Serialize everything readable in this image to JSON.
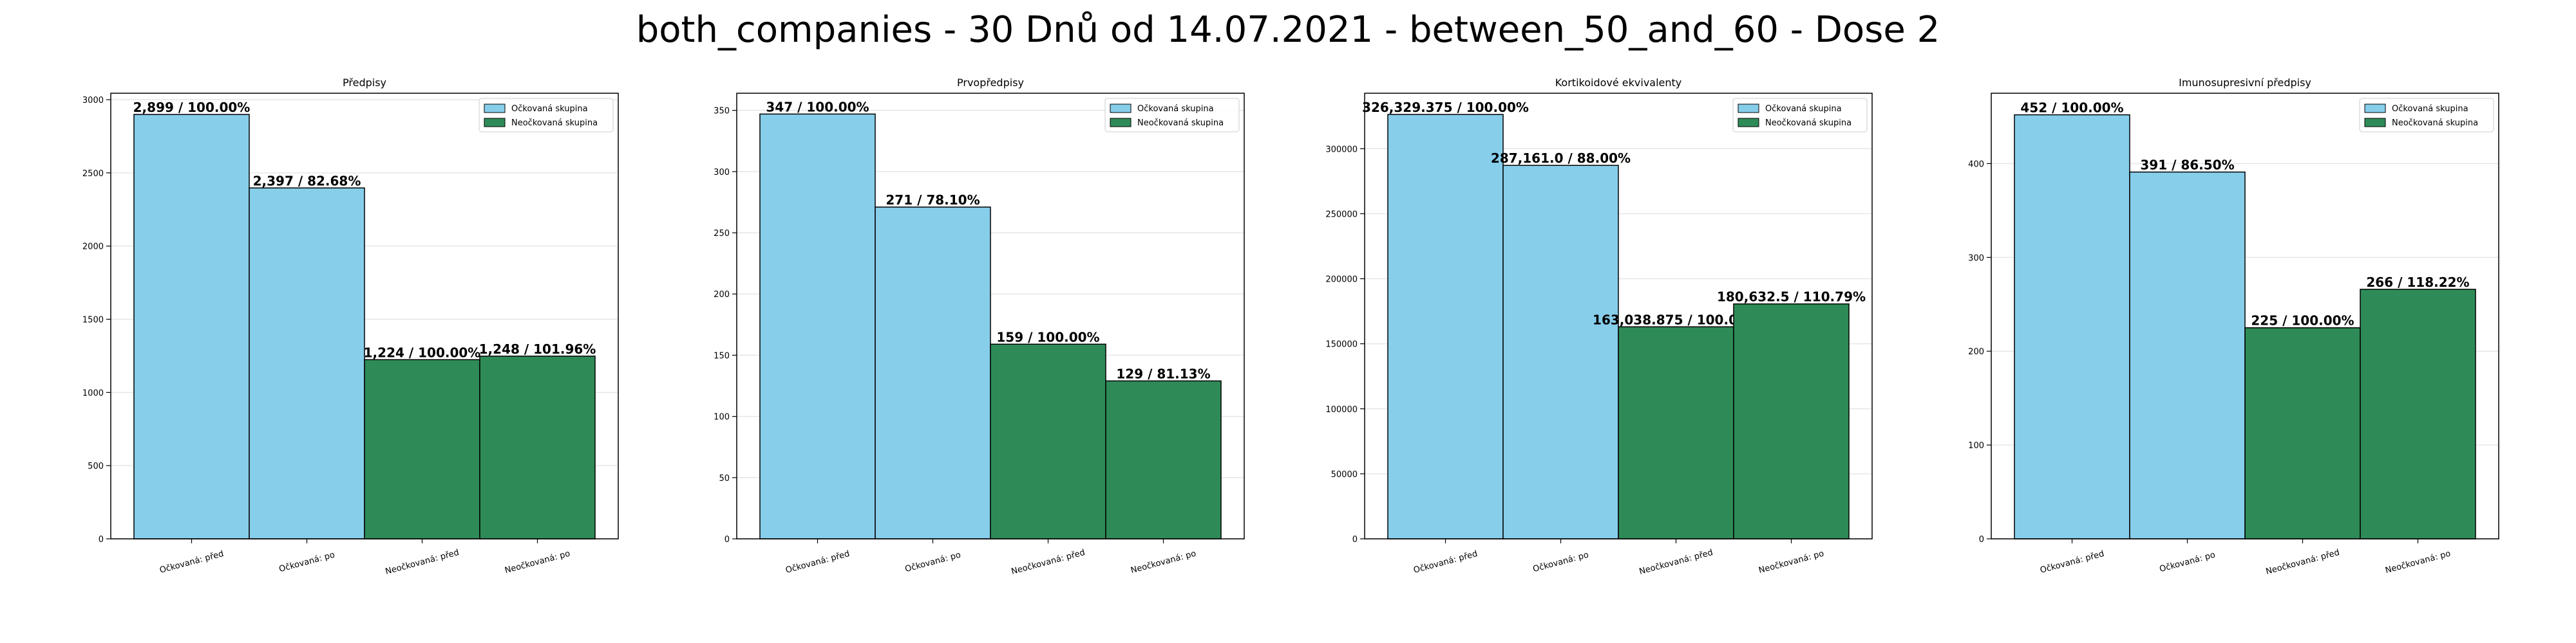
{
  "figure": {
    "title": "both_companies - 30 Dnů od 14.07.2021 - between_50_and_60 - Dose 2"
  },
  "colors": {
    "vaccinated": "#87ceeb",
    "unvaccinated": "#2e8b57",
    "edge": "#000000",
    "grid": "#e6e6e6"
  },
  "chart_data": [
    {
      "type": "bar",
      "title": "Předpisy",
      "categories": [
        "Očkovaná: před",
        "Očkovaná: po",
        "Neočkovaná: před",
        "Neočkovaná: po"
      ],
      "values": [
        2899,
        2397,
        1224,
        1248
      ],
      "groups": [
        "vaccinated",
        "vaccinated",
        "unvaccinated",
        "unvaccinated"
      ],
      "data_labels": [
        "2,899 / 100.00%",
        "2,397 / 82.68%",
        "1,224 / 100.00%",
        "1,248 / 101.96%"
      ],
      "ylim": [
        0,
        3044
      ],
      "yticks": [
        0,
        500,
        1000,
        1500,
        2000,
        2500,
        3000
      ],
      "ytick_labels": [
        "0",
        "500",
        "1000",
        "1500",
        "2000",
        "2500",
        "3000"
      ],
      "legend": [
        "Očkovaná skupina",
        "Neočkovaná skupina"
      ],
      "legend_position": "top-right",
      "grid": true
    },
    {
      "type": "bar",
      "title": "Prvopředpisy",
      "categories": [
        "Očkovaná: před",
        "Očkovaná: po",
        "Neočkovaná: před",
        "Neočkovaná: po"
      ],
      "values": [
        347,
        271,
        159,
        129
      ],
      "groups": [
        "vaccinated",
        "vaccinated",
        "unvaccinated",
        "unvaccinated"
      ],
      "data_labels": [
        "347 / 100.00%",
        "271 / 78.10%",
        "159 / 100.00%",
        "129 / 81.13%"
      ],
      "ylim": [
        0,
        364
      ],
      "yticks": [
        0,
        50,
        100,
        150,
        200,
        250,
        300,
        350
      ],
      "ytick_labels": [
        "0",
        "50",
        "100",
        "150",
        "200",
        "250",
        "300",
        "350"
      ],
      "legend": [
        "Očkovaná skupina",
        "Neočkovaná skupina"
      ],
      "legend_position": "top-right",
      "grid": true
    },
    {
      "type": "bar",
      "title": "Kortikoidové ekvivalenty",
      "categories": [
        "Očkovaná: před",
        "Očkovaná: po",
        "Neočkovaná: před",
        "Neočkovaná: po"
      ],
      "values": [
        326329.375,
        287161.0,
        163038.875,
        180632.5
      ],
      "groups": [
        "vaccinated",
        "vaccinated",
        "unvaccinated",
        "unvaccinated"
      ],
      "data_labels": [
        "326,329.375 / 100.00%",
        "287,161.0 / 88.00%",
        "163,038.875 / 100.00%",
        "180,632.5 / 110.79%"
      ],
      "ylim": [
        0,
        342646
      ],
      "yticks": [
        0,
        50000,
        100000,
        150000,
        200000,
        250000,
        300000
      ],
      "ytick_labels": [
        "0",
        "50000",
        "100000",
        "150000",
        "200000",
        "250000",
        "300000"
      ],
      "legend": [
        "Očkovaná skupina",
        "Neočkovaná skupina"
      ],
      "legend_position": "top-right",
      "grid": true
    },
    {
      "type": "bar",
      "title": "Imunosupresivní předpisy",
      "categories": [
        "Očkovaná: před",
        "Očkovaná: po",
        "Neočkovaná: před",
        "Neočkovaná: po"
      ],
      "values": [
        452,
        391,
        225,
        266
      ],
      "groups": [
        "vaccinated",
        "vaccinated",
        "unvaccinated",
        "unvaccinated"
      ],
      "data_labels": [
        "452 / 100.00%",
        "391 / 86.50%",
        "225 / 100.00%",
        "266 / 118.22%"
      ],
      "ylim": [
        0,
        475
      ],
      "yticks": [
        0,
        100,
        200,
        300,
        400
      ],
      "ytick_labels": [
        "0",
        "100",
        "200",
        "300",
        "400"
      ],
      "legend": [
        "Očkovaná skupina",
        "Neočkovaná skupina"
      ],
      "legend_position": "top-right",
      "grid": true
    }
  ]
}
